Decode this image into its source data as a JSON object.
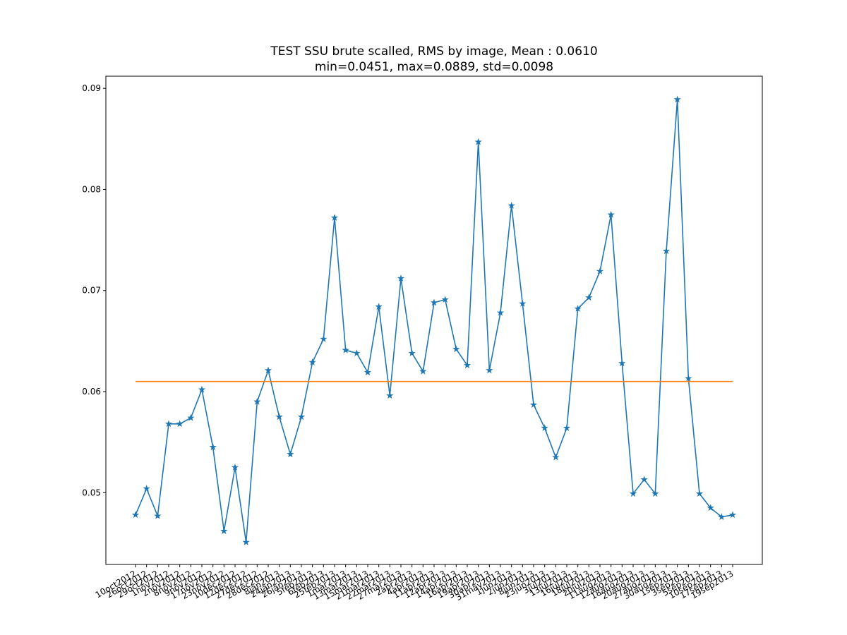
{
  "chart_data": {
    "type": "line",
    "title": "TEST SSU brute scalled, RMS by image, Mean : 0.0610",
    "subtitle": "min=0.0451, max=0.0889, std=0.0098",
    "categories": [
      "10oct2012",
      "26oct2012",
      "29oct2012",
      "1nov2012",
      "2nov2012",
      "8nov2012",
      "9nov2012",
      "17nov2012",
      "23nov2012",
      "10dec2012",
      "12dec2012",
      "27dec2012",
      "28dec2012",
      "8jan2013",
      "24jan2013",
      "26jan2013",
      "5feb2013",
      "6feb2013",
      "25feb2013",
      "1mar2013",
      "13mar2013",
      "15mar2013",
      "21mar2013",
      "22mar2013",
      "27mar2013",
      "2apr2013",
      "4apr2013",
      "11apr2013",
      "12apr2013",
      "14apr2013",
      "16apr2013",
      "19apr2013",
      "30apr2013",
      "31may2013",
      "1jun2013",
      "2jun2013",
      "8jun2013",
      "23jun2013",
      "3jul2013",
      "13jul2013",
      "16jul2013",
      "18jul2013",
      "20jul2013",
      "11aug2013",
      "12aug2013",
      "18aug2013",
      "20aug2013",
      "27aug2013",
      "30aug2013",
      "1sep2013",
      "3sep2013",
      "5sep2013",
      "10sep2013",
      "17sep2013",
      "19sep2013"
    ],
    "values": [
      0.0478,
      0.0504,
      0.0477,
      0.0568,
      0.0568,
      0.0574,
      0.0602,
      0.0545,
      0.0462,
      0.0525,
      0.0451,
      0.059,
      0.0621,
      0.0575,
      0.0538,
      0.0575,
      0.0629,
      0.0652,
      0.0772,
      0.0641,
      0.0638,
      0.0619,
      0.0684,
      0.0596,
      0.0712,
      0.0638,
      0.062,
      0.0688,
      0.0691,
      0.0642,
      0.0626,
      0.0847,
      0.0621,
      0.0678,
      0.0784,
      0.0687,
      0.0587,
      0.0564,
      0.0535,
      0.0564,
      0.0682,
      0.0693,
      0.0719,
      0.0775,
      0.0628,
      0.0499,
      0.0513,
      0.0499,
      0.0739,
      0.0889,
      0.0613,
      0.0499,
      0.0485,
      0.0476,
      0.0478
    ],
    "color": "#1f77b4",
    "mean": 0.061,
    "mean_color": "#ff7f0e",
    "ylim": [
      0.0429,
      0.0912
    ],
    "yticks": [
      0.05,
      0.06,
      0.07,
      0.08,
      0.09
    ],
    "grid": false
  }
}
